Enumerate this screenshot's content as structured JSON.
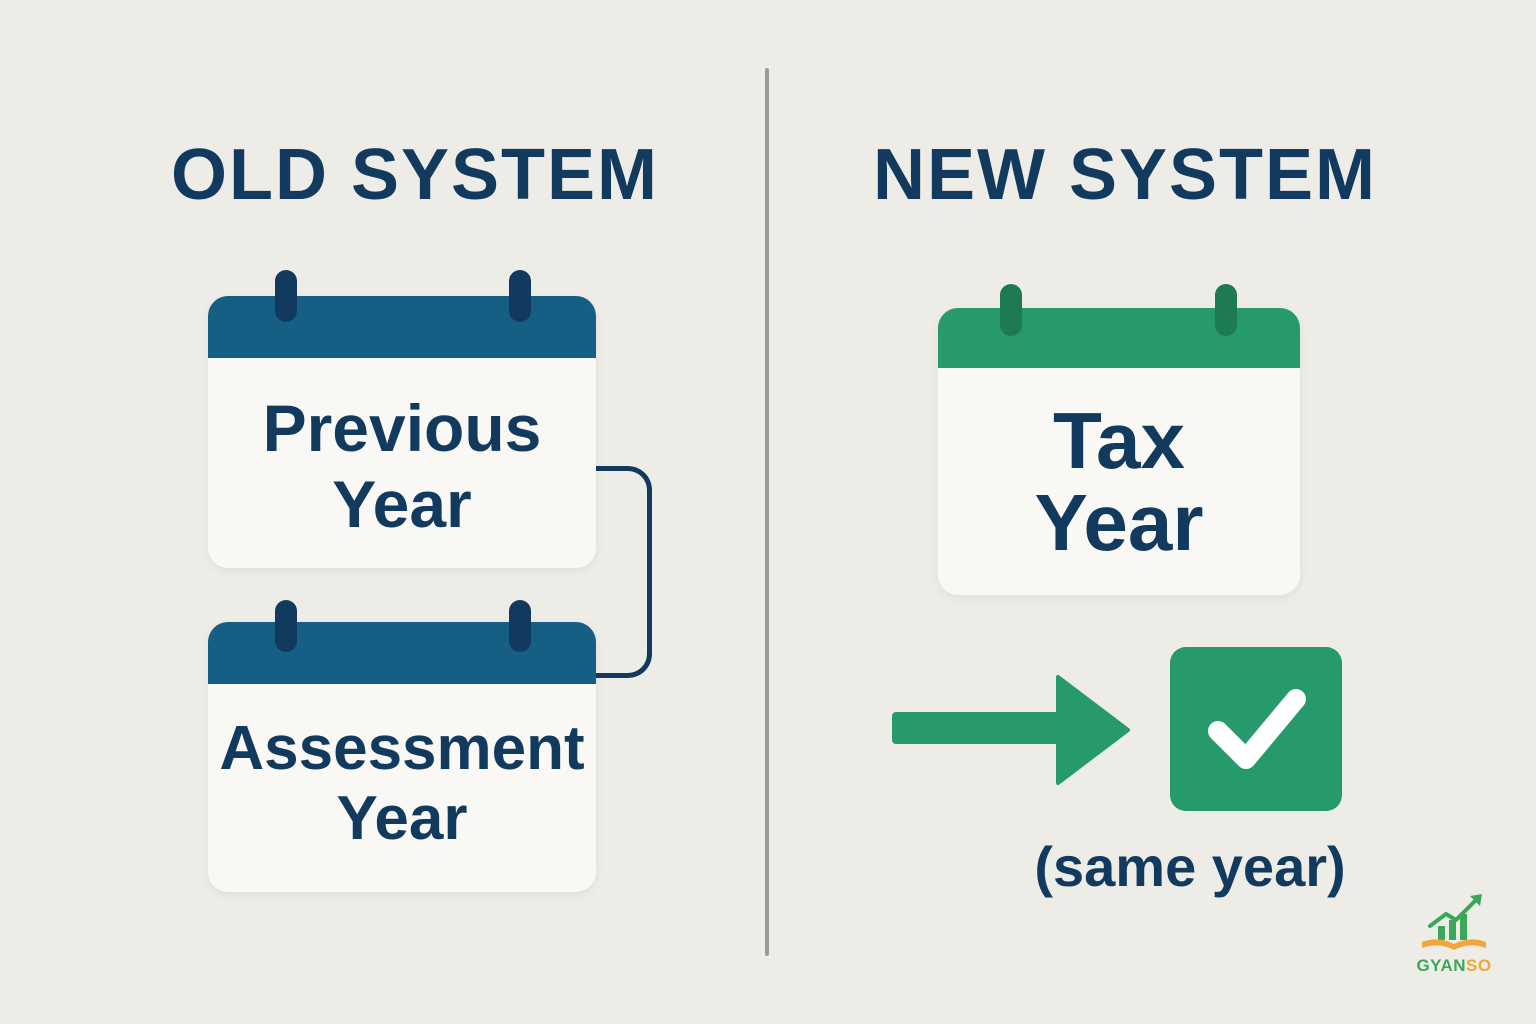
{
  "old_system": {
    "heading": "OLD SYSTEM",
    "previous_year": {
      "line1": "Previous",
      "line2": "Year"
    },
    "assessment_year": {
      "line1": "Assessment",
      "line2": "Year"
    }
  },
  "new_system": {
    "heading": "NEW SYSTEM",
    "tax_year": {
      "line1": "Tax",
      "line2": "Year"
    },
    "result_label": "(same year)"
  },
  "logo": {
    "brand_part1": "GYAN",
    "brand_part2": "SO"
  },
  "colors": {
    "navy": "#123a5e",
    "blue": "#155f85",
    "green": "#269a6b",
    "background": "#eeece6",
    "logo_orange": "#f0a63c",
    "logo_green": "#3aa858"
  },
  "icons": {
    "arrow": "right-arrow-icon",
    "check": "checkmark-icon",
    "logo": "growth-chart-book-icon"
  }
}
